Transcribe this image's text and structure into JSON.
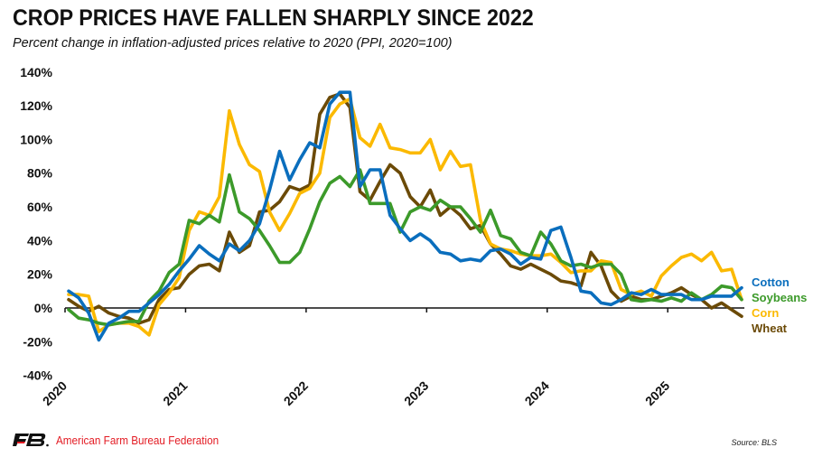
{
  "header": {
    "title": "CROP PRICES HAVE FALLEN SHARPLY SINCE 2022",
    "subtitle": "Percent change in inflation-adjusted prices relative to 2020 (PPI, 2020=100)"
  },
  "footer": {
    "organization": "American Farm Bureau Federation",
    "logo": "afbf-logo-icon",
    "source": "Source: BLS"
  },
  "chart_data": {
    "type": "line",
    "title": "CROP PRICES HAVE FALLEN SHARPLY SINCE 2022",
    "subtitle": "Percent change in inflation-adjusted prices relative to 2020 (PPI, 2020=100)",
    "xlabel": "",
    "ylabel": "",
    "x_start": "2020-01",
    "x_frequency": "monthly",
    "x_tick_labels": [
      "2020",
      "2021",
      "2022",
      "2023",
      "2024",
      "2025"
    ],
    "y_tick_labels": [
      "140%",
      "120%",
      "100%",
      "80%",
      "60%",
      "40%",
      "20%",
      "0%",
      "-20%",
      "-40%"
    ],
    "y_ticks": [
      140,
      120,
      100,
      80,
      60,
      40,
      20,
      0,
      -20,
      -40
    ],
    "ylim": [
      -40,
      140
    ],
    "grid": false,
    "legend": "right (direct labels at line ends)",
    "series": [
      {
        "name": "Cotton",
        "color": "#0a6ebd",
        "values": [
          10,
          6,
          -3,
          -19,
          -9,
          -6,
          -2,
          -2,
          3,
          8,
          14,
          22,
          29,
          37,
          32,
          28,
          38,
          34,
          40,
          50,
          70,
          93,
          76,
          88,
          98,
          95,
          121,
          128,
          128,
          72,
          82,
          82,
          55,
          47,
          40,
          44,
          40,
          33,
          32,
          28,
          29,
          28,
          34,
          35,
          32,
          26,
          30,
          29,
          46,
          48,
          30,
          10,
          9,
          3,
          2,
          5,
          9,
          8,
          11,
          8,
          8,
          8,
          5,
          5,
          7,
          7,
          7,
          12
        ]
      },
      {
        "name": "Soybeans",
        "color": "#3c9a2a",
        "values": [
          -1,
          -6,
          -7,
          -9,
          -10,
          -9,
          -8,
          -8,
          4,
          10,
          21,
          26,
          52,
          50,
          55,
          51,
          79,
          57,
          53,
          46,
          37,
          27,
          27,
          33,
          47,
          63,
          74,
          78,
          72,
          82,
          62,
          62,
          62,
          45,
          57,
          60,
          58,
          64,
          60,
          60,
          53,
          45,
          58,
          43,
          41,
          33,
          31,
          45,
          38,
          28,
          25,
          26,
          24,
          26,
          26,
          20,
          5,
          4,
          5,
          4,
          6,
          4,
          9,
          5,
          8,
          13,
          12,
          5
        ]
      },
      {
        "name": "Corn",
        "color": "#fbb900",
        "values": [
          8,
          8,
          7,
          -14,
          -10,
          -9,
          -9,
          -11,
          -16,
          2,
          9,
          18,
          46,
          57,
          55,
          66,
          117,
          97,
          85,
          81,
          57,
          46,
          56,
          68,
          71,
          80,
          113,
          121,
          124,
          101,
          96,
          109,
          95,
          94,
          92,
          92,
          100,
          82,
          93,
          84,
          85,
          52,
          38,
          35,
          34,
          32,
          31,
          31,
          32,
          27,
          21,
          22,
          22,
          28,
          27,
          11,
          8,
          10,
          7,
          19,
          25,
          30,
          32,
          28,
          33,
          22,
          23,
          5
        ]
      },
      {
        "name": "Wheat",
        "color": "#6b4a07",
        "values": [
          5,
          1,
          -2,
          1,
          -3,
          -5,
          -6,
          -9,
          -7,
          5,
          11,
          12,
          20,
          25,
          26,
          22,
          45,
          33,
          37,
          57,
          58,
          63,
          72,
          70,
          73,
          115,
          125,
          127,
          119,
          69,
          64,
          75,
          85,
          80,
          66,
          60,
          70,
          55,
          60,
          55,
          47,
          49,
          38,
          32,
          25,
          23,
          26,
          23,
          20,
          16,
          15,
          13,
          33,
          25,
          10,
          4,
          7,
          5,
          5,
          7,
          9,
          12,
          8,
          5,
          0,
          3,
          -1,
          -5
        ]
      }
    ]
  }
}
